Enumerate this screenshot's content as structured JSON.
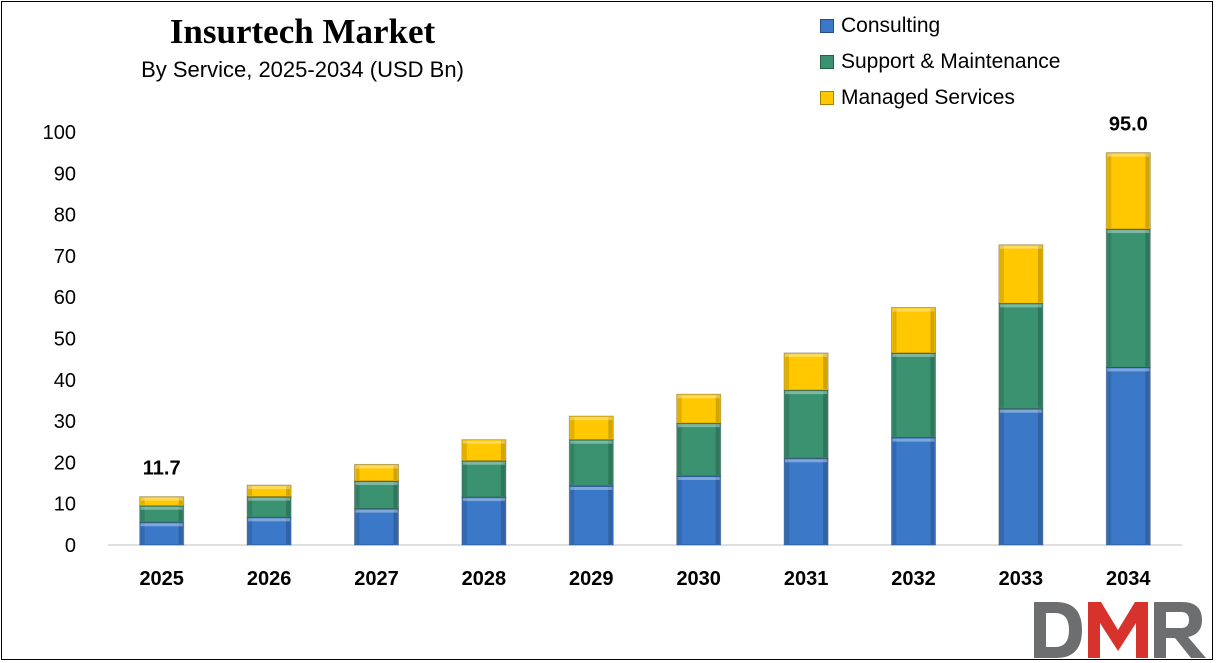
{
  "header": {
    "title": "Insurtech Market",
    "subtitle": "By Service, 2025-2034 (USD Bn)"
  },
  "colors": {
    "consulting": "#3B78C8",
    "support": "#3A9271",
    "managed": "#FFC800"
  },
  "logo": {
    "text": "DMR",
    "icon": "dmr-logo"
  },
  "chart_data": {
    "type": "bar",
    "stacked": true,
    "title": "Insurtech Market",
    "subtitle": "By Service, 2025-2034 (USD Bn)",
    "xlabel": "",
    "ylabel": "",
    "categories": [
      "2025",
      "2026",
      "2027",
      "2028",
      "2029",
      "2030",
      "2031",
      "2032",
      "2033",
      "2034"
    ],
    "series": [
      {
        "name": "Consulting",
        "values": [
          5.5,
          6.7,
          8.8,
          11.6,
          14.3,
          16.7,
          21.0,
          26.0,
          33.0,
          43.0
        ]
      },
      {
        "name": "Support & Maintenance",
        "values": [
          4.0,
          5.0,
          6.7,
          8.8,
          11.2,
          12.8,
          16.5,
          20.5,
          25.5,
          33.5
        ]
      },
      {
        "name": "Managed Services",
        "values": [
          2.2,
          2.8,
          4.0,
          5.1,
          5.7,
          7.0,
          9.0,
          11.0,
          14.2,
          18.5
        ]
      }
    ],
    "totals_labels": [
      {
        "category": "2025",
        "text": "11.7",
        "value": 11.7
      },
      {
        "category": "2034",
        "text": "95.0",
        "value": 95.0
      }
    ],
    "yticks": [
      "0",
      "10",
      "20",
      "30",
      "40",
      "50",
      "60",
      "70",
      "80",
      "90",
      "100"
    ],
    "ylim": [
      0,
      100
    ],
    "grid": false,
    "legend_position": "top-right"
  }
}
